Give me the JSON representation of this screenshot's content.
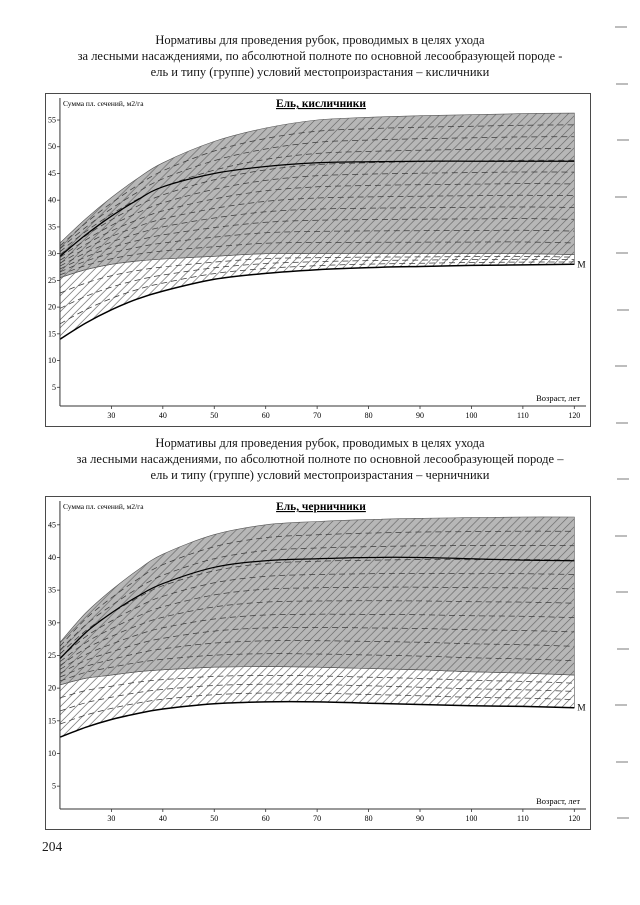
{
  "page": {
    "number": "204"
  },
  "section1": {
    "title_lines": [
      "Нормативы для проведения рубок, проводимых в целях ухода",
      "за лесными насаждениями, по абсолютной полноте по основной лесообразующей породе -",
      "ель и типу (группе) условий местопроизрастания – кисличники"
    ]
  },
  "section2": {
    "title_lines": [
      "Нормативы для проведения рубок, проводимых в целях ухода",
      "за лесными насаждениями, по абсолютной полноте по основной лесообразующей породе –",
      "ель и типу (группе) условий местопроизрастания – черничники"
    ]
  },
  "chart_data": [
    {
      "type": "line",
      "title": "Ель, кисличники",
      "ylabel": "Сумма пл. сечений, м2/га",
      "xlabel": "Возраст, лет",
      "xlim": [
        20,
        121.5
      ],
      "ylim": [
        1.5,
        56.5
      ],
      "x_ticks": [
        30,
        40,
        50,
        60,
        70,
        80,
        90,
        100,
        110,
        120
      ],
      "y_ticks": [
        5,
        10,
        15,
        20,
        25,
        30,
        35,
        40,
        45,
        50,
        55
      ],
      "grid": false,
      "legend": "none",
      "x": [
        20,
        25,
        30,
        35,
        40,
        50,
        60,
        70,
        80,
        90,
        100,
        110,
        120
      ],
      "bands": [
        {
          "name": "зона прореживания (серая штрихованная)",
          "fill": "#b7b7b7",
          "hatched": true,
          "family": 12,
          "upper": [
            32,
            36.5,
            40.5,
            44,
            47,
            51,
            53.5,
            55,
            55.5,
            55.8,
            56,
            56.2,
            56.3
          ],
          "lower": [
            25.5,
            27,
            28,
            28.6,
            29,
            29.5,
            30,
            30,
            30,
            30,
            30,
            30,
            29.8
          ]
        },
        {
          "name": "нижняя штрихованная зона",
          "fill": "none",
          "hatched": true,
          "family": 4,
          "upper": [
            25.5,
            27,
            28,
            28.6,
            29,
            29.5,
            30,
            30,
            30,
            30,
            30,
            30,
            29.8
          ],
          "lower": [
            14,
            17,
            19.5,
            21.5,
            23,
            25.2,
            26.3,
            27,
            27.4,
            27.6,
            27.8,
            27.9,
            28
          ]
        }
      ],
      "series": [
        {
          "name": "верхняя сплошная кривая",
          "values": [
            29.5,
            33.5,
            37,
            40,
            42.5,
            45,
            46.3,
            47,
            47.2,
            47.3,
            47.3,
            47.3,
            47.3
          ],
          "label": ""
        },
        {
          "name": "М (минимальная полнота)",
          "values": [
            14,
            17,
            19.5,
            21.5,
            23,
            25.2,
            26.3,
            27,
            27.4,
            27.6,
            27.8,
            27.9,
            28
          ],
          "label": "М"
        }
      ]
    },
    {
      "type": "line",
      "title": "Ель, черничники",
      "ylabel": "Сумма пл. сечений, м2/га",
      "xlabel": "Возраст, лет",
      "xlim": [
        20,
        121.5
      ],
      "ylim": [
        1.5,
        46.5
      ],
      "x_ticks": [
        30,
        40,
        50,
        60,
        70,
        80,
        90,
        100,
        110,
        120
      ],
      "y_ticks": [
        5,
        10,
        15,
        20,
        25,
        30,
        35,
        40,
        45
      ],
      "grid": false,
      "legend": "none",
      "x": [
        20,
        25,
        30,
        35,
        40,
        50,
        60,
        70,
        80,
        90,
        100,
        110,
        120
      ],
      "bands": [
        {
          "name": "зона прореживания (серая штрихованная)",
          "fill": "#b7b7b7",
          "hatched": true,
          "family": 11,
          "upper": [
            27,
            31.5,
            35,
            38,
            40.5,
            43.5,
            45,
            45.5,
            45.8,
            46,
            46.1,
            46.2,
            46.2
          ],
          "lower": [
            20.5,
            21.5,
            22,
            22.5,
            22.8,
            23.2,
            23.3,
            23.2,
            23,
            22.8,
            22.5,
            22.3,
            22
          ]
        },
        {
          "name": "нижняя штрихованная зона",
          "fill": "none",
          "hatched": true,
          "family": 4,
          "upper": [
            20.5,
            21.5,
            22,
            22.5,
            22.8,
            23.2,
            23.3,
            23.2,
            23,
            22.8,
            22.5,
            22.3,
            22
          ],
          "lower": [
            12.5,
            14,
            15.2,
            16.1,
            16.8,
            17.6,
            17.9,
            17.9,
            17.7,
            17.5,
            17.3,
            17.2,
            17
          ]
        }
      ],
      "series": [
        {
          "name": "верхняя сплошная кривая",
          "values": [
            24.5,
            28.5,
            31.5,
            34,
            36,
            38.5,
            39.5,
            39.8,
            40,
            40,
            39.8,
            39.6,
            39.5
          ],
          "label": ""
        },
        {
          "name": "М (минимальная полнота)",
          "values": [
            12.5,
            14,
            15.2,
            16.1,
            16.8,
            17.6,
            17.9,
            17.9,
            17.7,
            17.5,
            17.3,
            17.2,
            17
          ],
          "label": "М"
        }
      ]
    }
  ]
}
